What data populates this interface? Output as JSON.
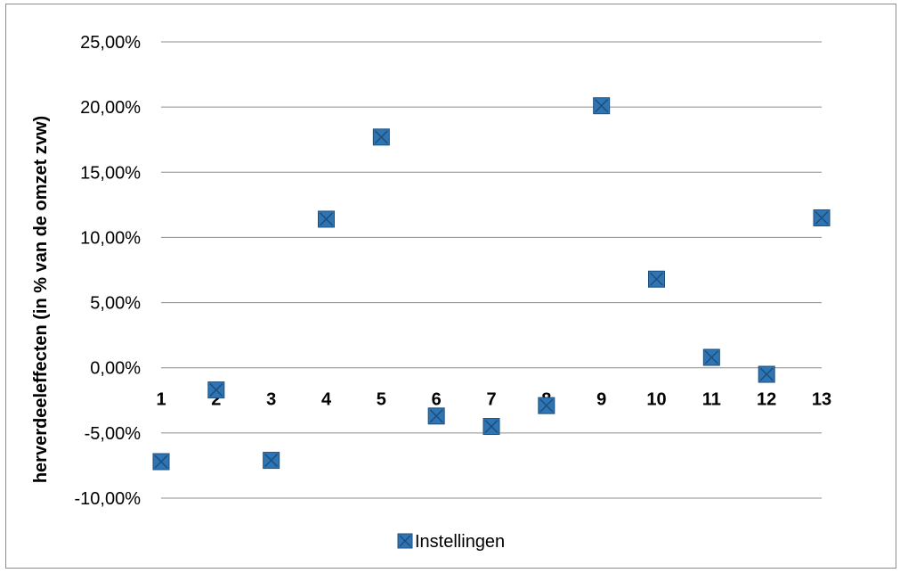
{
  "chart_data": {
    "type": "scatter",
    "ylabel": "herverdeeleffecten (in % van de omzet zvw)",
    "xlabel": "",
    "title": "",
    "ylim": [
      -0.1,
      0.25
    ],
    "ytick_values": [
      -0.1,
      -0.05,
      0.0,
      0.05,
      0.1,
      0.15,
      0.2,
      0.25
    ],
    "ytick_labels": [
      "-10,00%",
      "-5,00%",
      "0,00%",
      "5,00%",
      "10,00%",
      "15,00%",
      "20,00%",
      "25,00%"
    ],
    "xlim": [
      1,
      13
    ],
    "xtick_labels": [
      "1",
      "2",
      "3",
      "4",
      "5",
      "6",
      "7",
      "8",
      "9",
      "10",
      "11",
      "12",
      "13"
    ],
    "grid": "horizontal",
    "legend_position": "bottom",
    "series": [
      {
        "name": "Instellingen",
        "color": "#2e75b6",
        "marker": "square-x",
        "x": [
          1,
          2,
          3,
          4,
          5,
          6,
          7,
          8,
          9,
          10,
          11,
          12,
          13
        ],
        "y": [
          -0.072,
          -0.017,
          -0.071,
          0.114,
          0.177,
          -0.037,
          -0.045,
          -0.029,
          0.201,
          0.068,
          0.008,
          -0.005,
          0.115
        ]
      }
    ]
  }
}
